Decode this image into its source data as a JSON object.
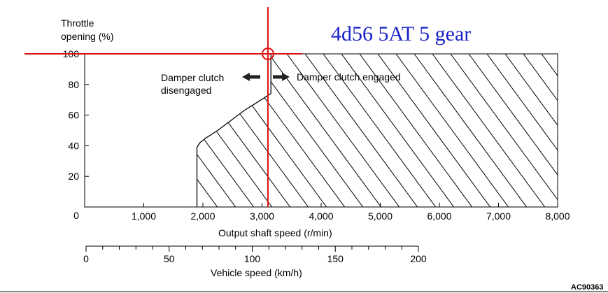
{
  "chart_data": {
    "type": "area",
    "title": "4d56 5AT 5 gear",
    "xlabel": "Output shaft speed (r/min)",
    "ylabel": "Throttle\nopening (%)",
    "xlim": [
      0,
      8000
    ],
    "ylim": [
      0,
      100
    ],
    "x_ticks": [
      {
        "value": 1000,
        "label": "1,000"
      },
      {
        "value": 2000,
        "label": "2,000"
      },
      {
        "value": 3000,
        "label": "3,000"
      },
      {
        "value": 4000,
        "label": "4,000"
      },
      {
        "value": 5000,
        "label": "5,000"
      },
      {
        "value": 6000,
        "label": "6,000"
      },
      {
        "value": 7000,
        "label": "7,000"
      },
      {
        "value": 8000,
        "label": "8,000"
      }
    ],
    "x_origin_label": "0",
    "y_ticks": [
      {
        "value": 20,
        "label": "20"
      },
      {
        "value": 40,
        "label": "40"
      },
      {
        "value": 60,
        "label": "60"
      },
      {
        "value": 80,
        "label": "80"
      },
      {
        "value": 100,
        "label": "100"
      }
    ],
    "boundary_curve": {
      "x": [
        1900,
        1900,
        1950,
        2050,
        2250,
        2700,
        3150,
        3150
      ],
      "y": [
        0,
        39,
        42,
        45,
        50,
        63,
        74,
        100
      ]
    },
    "region_labels": {
      "left": "Damper clutch\ndisengaged",
      "right": "Damper clutch engaged"
    },
    "marker": {
      "x": 3100,
      "y": 100,
      "color": "#dd1111"
    },
    "secondary_axis": {
      "label": "Vehicle speed (km/h)",
      "range": [
        0,
        200
      ],
      "tick_step": 10,
      "labeled_ticks": [
        {
          "value": 0,
          "label": "0"
        },
        {
          "value": 50,
          "label": "50"
        },
        {
          "value": 100,
          "label": "100"
        },
        {
          "value": 150,
          "label": "150"
        },
        {
          "value": 200,
          "label": "200"
        }
      ]
    },
    "figure_code": "AC90363",
    "colors": {
      "line": "#000000",
      "marker": "#dd1111",
      "title": "#1a22c9"
    }
  }
}
